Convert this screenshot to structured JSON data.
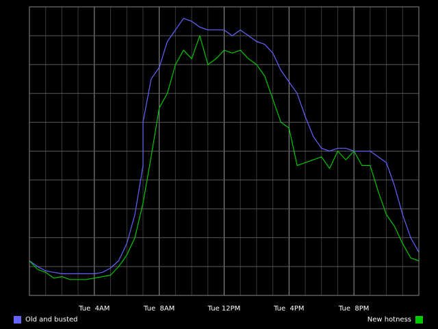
{
  "chart_data": {
    "type": "line",
    "title": "",
    "xlabel": "",
    "ylabel": "",
    "xlim": [
      0,
      24
    ],
    "ylim": [
      0,
      100
    ],
    "grid": true,
    "legend_position": "bottom",
    "x_ticks": [
      {
        "x": 4,
        "label": "Tue  4AM"
      },
      {
        "x": 8,
        "label": "Tue  8AM"
      },
      {
        "x": 12,
        "label": "Tue 12PM"
      },
      {
        "x": 16,
        "label": "Tue  4PM"
      },
      {
        "x": 20,
        "label": "Tue  8PM"
      }
    ],
    "series": [
      {
        "name": "Old and busted",
        "color": "#6464ff",
        "x": [
          0,
          0.5,
          1,
          1.5,
          2,
          2.5,
          3,
          3.5,
          4,
          4.5,
          5,
          5.5,
          6,
          6.5,
          7,
          7,
          7.5,
          8,
          8.5,
          9,
          9.5,
          10,
          10.5,
          11,
          11.5,
          12,
          12.5,
          13,
          13.5,
          14,
          14.5,
          15,
          15.5,
          16,
          16.5,
          17,
          17.5,
          18,
          18.5,
          19,
          19.5,
          20,
          20.5,
          21,
          21.5,
          22,
          22.5,
          23,
          23.5,
          24
        ],
        "values": [
          12,
          10,
          8.5,
          8,
          7.5,
          7.5,
          7.5,
          7.5,
          7.5,
          8,
          9.5,
          12,
          18,
          28,
          45,
          60,
          75,
          79,
          88,
          92,
          96,
          95,
          93,
          92,
          92,
          92,
          90,
          92,
          90,
          88,
          87,
          84,
          78,
          74,
          70,
          62,
          55,
          51,
          50,
          51,
          51,
          50,
          50,
          50,
          48,
          46,
          38,
          28,
          20,
          15
        ]
      },
      {
        "name": "New hotness",
        "color": "#00c800",
        "x": [
          0,
          0.5,
          1,
          1.5,
          2,
          2.5,
          3,
          3.5,
          4,
          4.5,
          5,
          5.5,
          6,
          6.5,
          7,
          7.5,
          8,
          8.5,
          9,
          9.5,
          10,
          10.5,
          11,
          11.5,
          12,
          12.5,
          13,
          13.5,
          14,
          14.5,
          15,
          15.5,
          16,
          16.5,
          17,
          17.5,
          18,
          18.5,
          19,
          19.5,
          20,
          20.5,
          21,
          21.5,
          22,
          22.5,
          23,
          23.5,
          24
        ],
        "values": [
          12,
          9,
          8,
          6,
          6.5,
          5.5,
          5.5,
          5.5,
          6,
          6.5,
          7,
          10,
          14,
          20,
          32,
          48,
          65,
          70,
          80,
          85,
          82,
          90,
          80,
          82,
          85,
          84,
          85,
          82,
          80,
          76,
          68,
          60,
          58,
          45,
          46,
          47,
          48,
          44,
          50,
          47,
          50,
          45,
          45,
          36,
          28,
          24,
          18,
          13,
          12
        ]
      }
    ]
  }
}
